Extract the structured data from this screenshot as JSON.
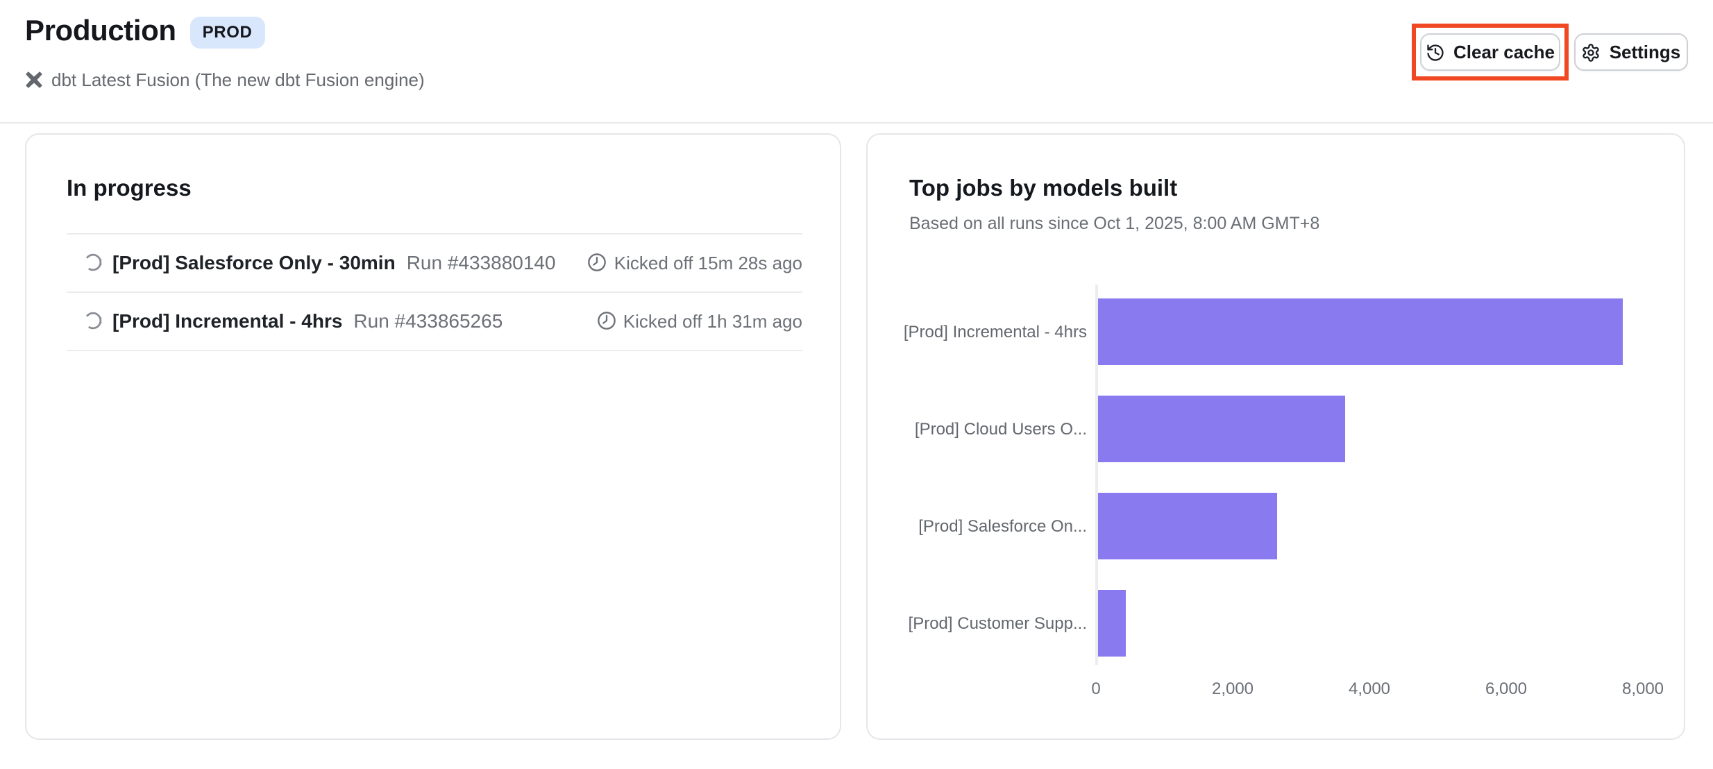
{
  "header": {
    "title": "Production",
    "badge": "PROD",
    "subtitle": "dbt Latest Fusion (The new dbt Fusion engine)",
    "clear_cache_label": "Clear cache",
    "settings_label": "Settings"
  },
  "in_progress": {
    "title": "In progress",
    "runs": [
      {
        "name": "[Prod] Salesforce Only - 30min",
        "run": "Run #433880140",
        "kicked_off": "Kicked off 15m 28s ago"
      },
      {
        "name": "[Prod] Incremental - 4hrs",
        "run": "Run #433865265",
        "kicked_off": "Kicked off 1h 31m ago"
      }
    ]
  },
  "top_jobs": {
    "title": "Top jobs by models built",
    "subtitle": "Based on all runs since Oct 1, 2025, 8:00 AM GMT+8"
  },
  "chart_data": {
    "type": "bar",
    "orientation": "horizontal",
    "title": "Top jobs by models built",
    "categories": [
      "[Prod] Incremental - 4hrs",
      "[Prod] Cloud Users O...",
      "[Prod] Salesforce On...",
      "[Prod] Customer Supp..."
    ],
    "values": [
      7680,
      3610,
      2620,
      400
    ],
    "xlabel": "",
    "ylabel": "",
    "xlim": [
      0,
      8000
    ],
    "tick_values": [
      0,
      2000,
      4000,
      6000,
      8000
    ],
    "tick_labels": [
      "0",
      "2,000",
      "4,000",
      "6,000",
      "8,000"
    ],
    "grid": false,
    "legend": false,
    "bar_color": "#8A7AF0"
  },
  "colors": {
    "bar_purple": "#8A7AF0",
    "badge_bg": "#D9E7FC",
    "annotation_red": "#EF4823",
    "card_border": "#e4e6e9",
    "text_primary": "#15171c",
    "text_secondary": "#6a6e74"
  }
}
